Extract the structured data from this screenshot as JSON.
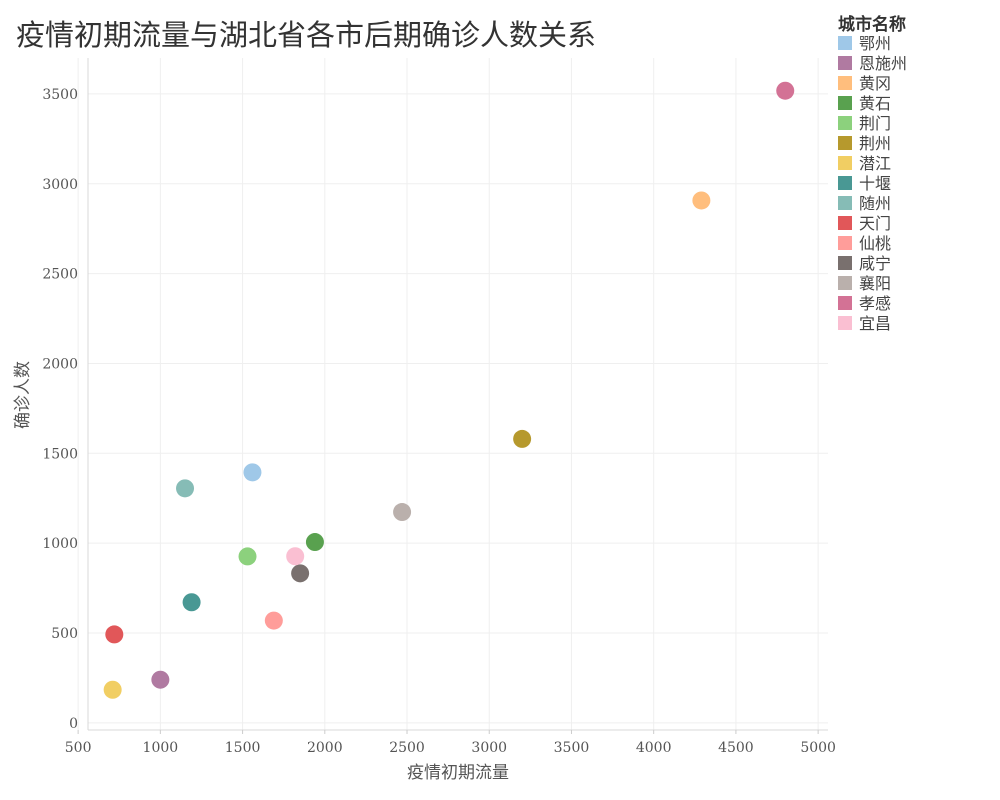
{
  "chart_data": {
    "type": "scatter",
    "title": "疫情初期流量与湖北省各市后期确诊人数关系",
    "xlabel": "疫情初期流量",
    "ylabel": "确诊人数",
    "xlim": [
      560,
      5060
    ],
    "ylim": [
      -40,
      3700
    ],
    "x_ticks": [
      500,
      1000,
      1500,
      2000,
      2500,
      3000,
      3500,
      4000,
      4500,
      5000
    ],
    "y_ticks": [
      0,
      500,
      1000,
      1500,
      2000,
      2500,
      3000,
      3500
    ],
    "grid": true,
    "legend_title": "城市名称",
    "legend_position": "top-right",
    "points": [
      {
        "name": "鄂州",
        "x": 1560,
        "y": 1394,
        "color": "#9fc8e8"
      },
      {
        "name": "恩施州",
        "x": 1000,
        "y": 240,
        "color": "#b07aa1"
      },
      {
        "name": "黄冈",
        "x": 4290,
        "y": 2907,
        "color": "#ffbe7d"
      },
      {
        "name": "黄石",
        "x": 1940,
        "y": 1006,
        "color": "#59a14f"
      },
      {
        "name": "荆门",
        "x": 1530,
        "y": 926,
        "color": "#8cd17d"
      },
      {
        "name": "荆州",
        "x": 3200,
        "y": 1580,
        "color": "#b6992d"
      },
      {
        "name": "潜江",
        "x": 710,
        "y": 184,
        "color": "#f1ce63"
      },
      {
        "name": "十堰",
        "x": 1190,
        "y": 671,
        "color": "#499894"
      },
      {
        "name": "随州",
        "x": 1150,
        "y": 1305,
        "color": "#86bcb6"
      },
      {
        "name": "天门",
        "x": 720,
        "y": 492,
        "color": "#e15759"
      },
      {
        "name": "仙桃",
        "x": 1690,
        "y": 569,
        "color": "#ff9d9a"
      },
      {
        "name": "咸宁",
        "x": 1850,
        "y": 832,
        "color": "#79706e"
      },
      {
        "name": "襄阳",
        "x": 2470,
        "y": 1173,
        "color": "#bab0ac"
      },
      {
        "name": "孝感",
        "x": 4800,
        "y": 3518,
        "color": "#d37295"
      },
      {
        "name": "宜昌",
        "x": 1820,
        "y": 927,
        "color": "#fabfd2"
      }
    ]
  }
}
